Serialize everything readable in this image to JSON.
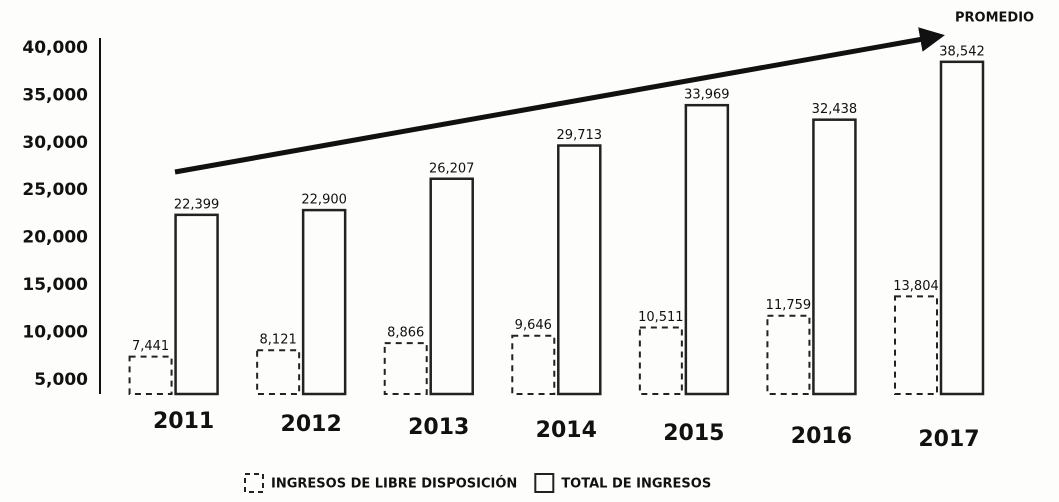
{
  "chart_data": {
    "type": "bar",
    "annotation": "PROMEDIO",
    "categories": [
      "2011",
      "2012",
      "2013",
      "2014",
      "2015",
      "2016",
      "2017"
    ],
    "series": [
      {
        "name": "INGRESOS DE LIBRE DISPOSICIÓN",
        "color": "#222222",
        "dashed": true,
        "values": [
          7441,
          8121,
          8866,
          9646,
          10511,
          11759,
          13804
        ],
        "value_labels": [
          "7,441",
          "8,121",
          "8,866",
          "9,646",
          "10,511",
          "11,759",
          "13,804"
        ]
      },
      {
        "name": "TOTAL DE INGRESOS",
        "color": "#222222",
        "dashed": false,
        "values": [
          22399,
          22900,
          26207,
          29713,
          33969,
          32438,
          38542
        ],
        "value_labels": [
          "22,399",
          "22,900",
          "26,207",
          "29,713",
          "33,969",
          "32,438",
          "38,542"
        ]
      }
    ],
    "ylim": [
      3500,
      40000
    ],
    "yticks": [
      {
        "value": 5000,
        "label": "5,000"
      },
      {
        "value": 10000,
        "label": "10,000"
      },
      {
        "value": 15000,
        "label": "15,000"
      },
      {
        "value": 20000,
        "label": "20,000"
      },
      {
        "value": 25000,
        "label": "25,000"
      },
      {
        "value": 30000,
        "label": "30,000"
      },
      {
        "value": 35000,
        "label": "35,000"
      },
      {
        "value": 40000,
        "label": "40,000"
      }
    ],
    "grid": false
  }
}
